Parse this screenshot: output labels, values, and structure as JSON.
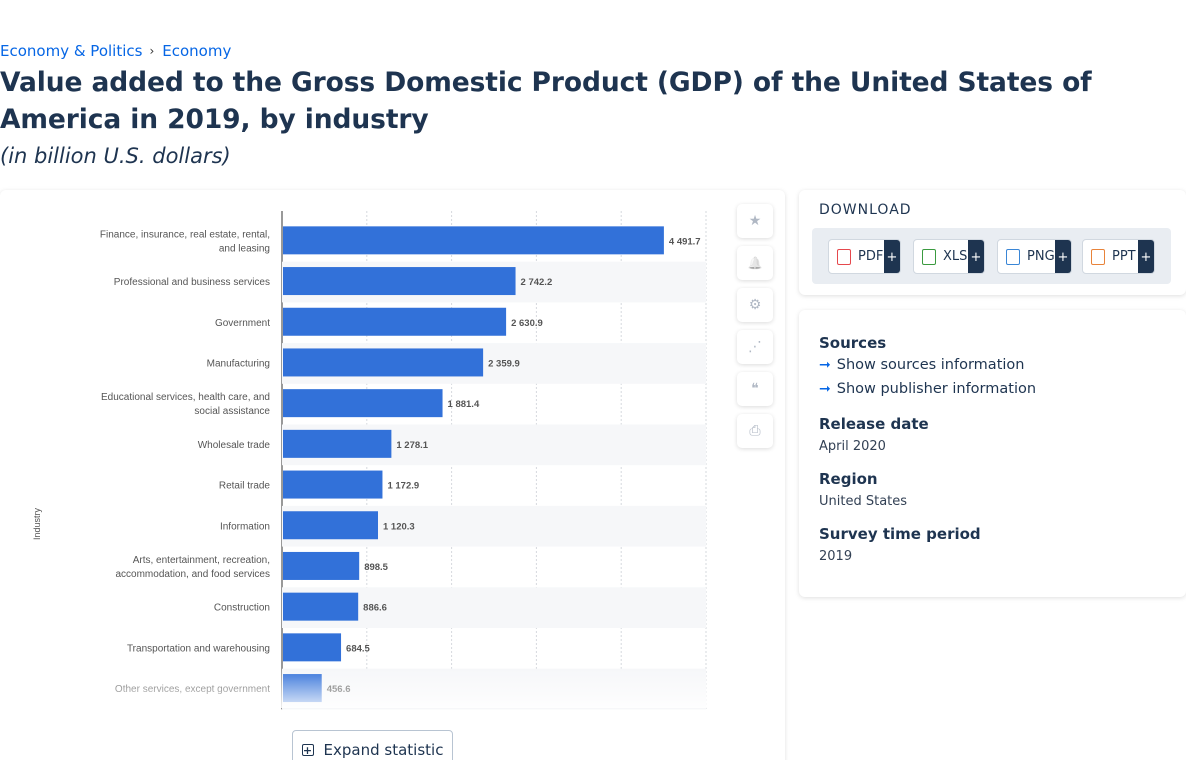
{
  "breadcrumb": {
    "items": [
      "Economy & Politics",
      "Economy"
    ],
    "separator": "›"
  },
  "page": {
    "title": "Value added to the Gross Domestic Product (GDP) of the United States of America in 2019, by industry",
    "subtitle": "(in billion U.S. dollars)"
  },
  "chart_data": {
    "type": "bar",
    "orientation": "horizontal",
    "categories": [
      "Finance, insurance, real estate, rental, and leasing",
      "Professional and business services",
      "Government",
      "Manufacturing",
      "Educational services, health care, and social assistance",
      "Wholesale trade",
      "Retail trade",
      "Information",
      "Arts, entertainment, recreation, accommodation, and food services",
      "Construction",
      "Transportation and warehousing",
      "Other services, except government"
    ],
    "values": [
      4491.7,
      2742.2,
      2630.9,
      2359.9,
      1881.4,
      1278.1,
      1172.9,
      1120.3,
      898.5,
      886.6,
      684.5,
      456.6
    ],
    "value_labels": [
      "4 491.7",
      "2 742.2",
      "2 630.9",
      "2 359.9",
      "1 881.4",
      "1 278.1",
      "1 172.9",
      "1 120.3",
      "898.5",
      "886.6",
      "684.5",
      "456.6"
    ],
    "ylabel": "Industry",
    "xlim": [
      0,
      5000
    ],
    "grid": true,
    "bar_color": "#3271d9",
    "truncated_fade": true
  },
  "toolbar": {
    "icons": [
      "star-icon",
      "bell-icon",
      "gear-icon",
      "share-icon",
      "quote-icon",
      "print-icon"
    ],
    "glyphs": [
      "★",
      "🔔",
      "⚙",
      "⋰",
      "❝",
      "⎙"
    ]
  },
  "expand": {
    "label": "Expand statistic",
    "icon": "plus-square-icon"
  },
  "download": {
    "title": "DOWNLOAD",
    "formats": [
      {
        "label": "PDF",
        "color": "#e5484d"
      },
      {
        "label": "XLS",
        "color": "#3a9a3f"
      },
      {
        "label": "PNG",
        "color": "#3a86d6"
      },
      {
        "label": "PPT",
        "color": "#e8833a"
      }
    ],
    "plus": "+"
  },
  "info": {
    "sources_label": "Sources",
    "show_sources": "Show sources information",
    "show_publisher": "Show publisher information",
    "release_label": "Release date",
    "release_value": "April 2020",
    "region_label": "Region",
    "region_value": "United States",
    "period_label": "Survey time period",
    "period_value": "2019"
  },
  "colors": {
    "accent": "#0666e5",
    "heading": "#1e3450"
  }
}
